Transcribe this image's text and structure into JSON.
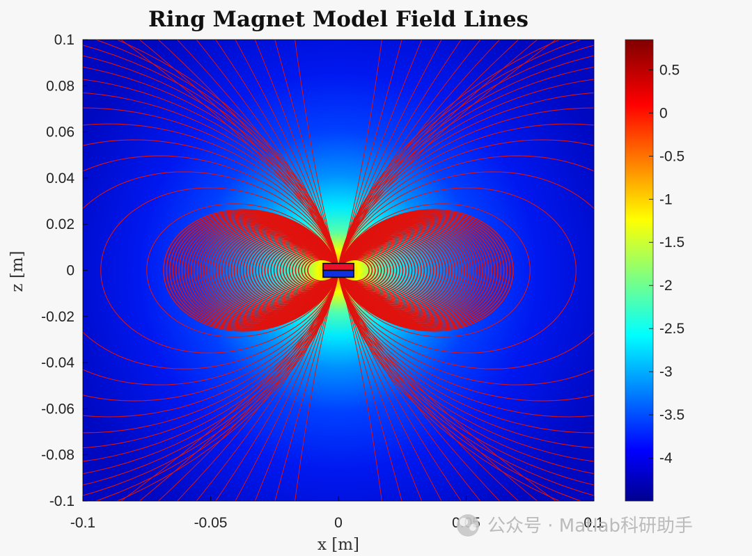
{
  "chart_data": {
    "type": "heatmap",
    "title": "Ring Magnet Model Field Lines",
    "xlabel": "x [m]",
    "ylabel": "z [m]",
    "xlim": [
      -0.1,
      0.1
    ],
    "ylim": [
      -0.1,
      0.1
    ],
    "xticks": [
      "-0.1",
      "-0.05",
      "0",
      "0.05",
      "0.1"
    ],
    "yticks": [
      "0.1",
      "0.08",
      "0.06",
      "0.04",
      "0.02",
      "0",
      "-0.02",
      "-0.04",
      "-0.06",
      "-0.08",
      "-0.1"
    ],
    "colorbar": {
      "range": [
        -4.5,
        0.85
      ],
      "ticks": [
        "0.5",
        "0",
        "-0.5",
        "-1",
        "-1.5",
        "-2",
        "-2.5",
        "-3",
        "-3.5",
        "-4"
      ],
      "colormap": "jet"
    },
    "magnet": {
      "x_range": [
        -0.006,
        0.006
      ],
      "z_range": [
        -0.003,
        0.003
      ],
      "north_color": "#e8102a",
      "south_color": "#1030e0"
    },
    "field_line_color": "#e0120e",
    "grid": false
  },
  "watermark": {
    "text": "公众号 · Matlab科研助手",
    "icon": "wechat-icon"
  }
}
